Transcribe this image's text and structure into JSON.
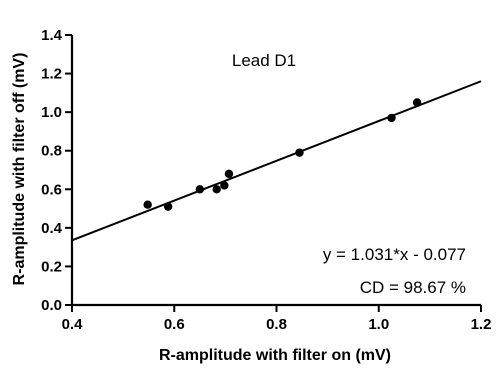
{
  "chart_data": {
    "type": "scatter",
    "xlabel": "R-amplitude with filter on (mV)",
    "ylabel": "R-amplitude with filter off (mV)",
    "xlim": [
      0.4,
      1.2
    ],
    "ylim": [
      0.0,
      1.4
    ],
    "x_ticks": [
      "0.4",
      "0.6",
      "0.8",
      "1.0",
      "1.2"
    ],
    "y_ticks": [
      "0.0",
      "0.2",
      "0.4",
      "0.6",
      "0.8",
      "1.0",
      "1.2",
      "1.4"
    ],
    "grid": false,
    "points": [
      {
        "x": 0.548,
        "y": 0.52
      },
      {
        "x": 0.588,
        "y": 0.51
      },
      {
        "x": 0.65,
        "y": 0.6
      },
      {
        "x": 0.683,
        "y": 0.6
      },
      {
        "x": 0.698,
        "y": 0.62
      },
      {
        "x": 0.707,
        "y": 0.68
      },
      {
        "x": 0.845,
        "y": 0.79
      },
      {
        "x": 1.025,
        "y": 0.97
      },
      {
        "x": 1.075,
        "y": 1.05
      }
    ],
    "fit": {
      "slope": 1.031,
      "intercept": -0.077
    },
    "annotations": {
      "lead": "Lead D1",
      "equation": "y = 1.031*x - 0.077",
      "cd": "CD = 98.67 %"
    }
  }
}
